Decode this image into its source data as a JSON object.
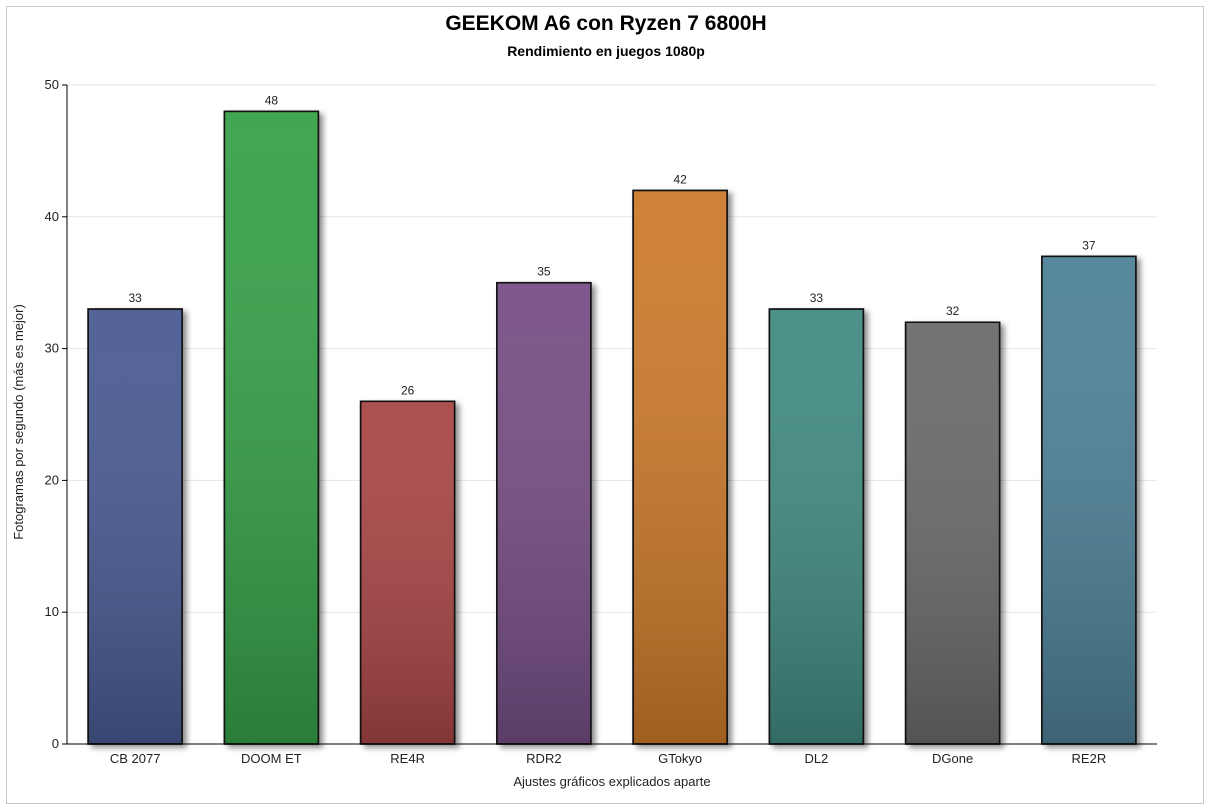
{
  "chart_data": {
    "type": "bar",
    "title": "GEEKOM A6 con Ryzen 7 6800H",
    "subtitle": "Rendimiento en juegos 1080p",
    "xlabel": "Ajustes gráficos explicados aparte",
    "ylabel": "Fotogramas por segundo (más es mejor)",
    "categories": [
      "CB 2077",
      "DOOM ET",
      "RE4R",
      "RDR2",
      "GTokyo",
      "DL2",
      "DGone",
      "RE2R"
    ],
    "values": [
      33,
      48,
      26,
      35,
      42,
      33,
      32,
      37
    ],
    "colors": [
      "#4a5a92",
      "#36a046",
      "#a84444",
      "#754e84",
      "#cc7a2c",
      "#3f8a80",
      "#6a6a6a",
      "#4d8096"
    ],
    "ylim": [
      0,
      50
    ],
    "yticks": [
      0,
      10,
      20,
      30,
      40,
      50
    ],
    "grid": true,
    "data_labels": true,
    "legend": "none"
  }
}
